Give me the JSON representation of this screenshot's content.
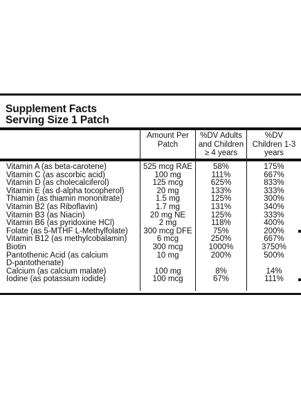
{
  "panel": {
    "title": "Supplement Facts",
    "serving": "Serving Size 1 Patch",
    "headers": {
      "amount": "Amount Per\nPatch",
      "adults": "%DV Adults\nand Children\n≥ 4 years",
      "children": "%DV\nChildren 1-3\nyears"
    },
    "rows": [
      {
        "name": "Vitamin A (as beta-carotene)",
        "amount": "525 mcg RAE",
        "adults": "58%",
        "children": "175%"
      },
      {
        "name": "Vitamin C (as ascorbic acid)",
        "amount": "100 mg",
        "adults": "111%",
        "children": "667%"
      },
      {
        "name": "Vitamin D (as cholecalciferol)",
        "amount": "125 mcg",
        "adults": "625%",
        "children": "833%"
      },
      {
        "name": "Vitamin E (as d-alpha tocopherol)",
        "amount": "20 mg",
        "adults": "133%",
        "children": "333%"
      },
      {
        "name": "Thiamin (as thiamin mononitrate)",
        "amount": "1.5 mg",
        "adults": "125%",
        "children": "300%"
      },
      {
        "name": "Vitamin B2 (as Riboflavin)",
        "amount": "1.7 mg",
        "adults": "131%",
        "children": "340%"
      },
      {
        "name": "Vitamin B3 (as Niacin)",
        "amount": "20 mg NE",
        "adults": "125%",
        "children": "333%"
      },
      {
        "name": "Vitamin B6 (as pyridoxine HCl)",
        "amount": "2 mg",
        "adults": "118%",
        "children": "400%"
      },
      {
        "name": "Folate (as 5-MTHF L-Methylfolate)",
        "amount": "300 mcg DFE",
        "adults": "75%",
        "children": "200%"
      },
      {
        "name": "Vitamin B12 (as methylcobalamin)",
        "amount": "6 mcg",
        "adults": "250%",
        "children": "667%"
      },
      {
        "name": "Biotin",
        "amount": "300 mcg",
        "adults": "1000%",
        "children": "3750%"
      },
      {
        "name": "Pantothenic Acid (as calcium",
        "amount": "10 mg",
        "adults": "200%",
        "children": "500%"
      },
      {
        "name": "D-pantothenate)",
        "amount": "",
        "adults": "",
        "children": ""
      },
      {
        "name": "Calcium (as calcium malate)",
        "amount": "100 mg",
        "adults": "8%",
        "children": "14%"
      },
      {
        "name": "Iodine (as potassium iodide)",
        "amount": "100 mcg",
        "adults": "67%",
        "children": "111%"
      }
    ]
  }
}
